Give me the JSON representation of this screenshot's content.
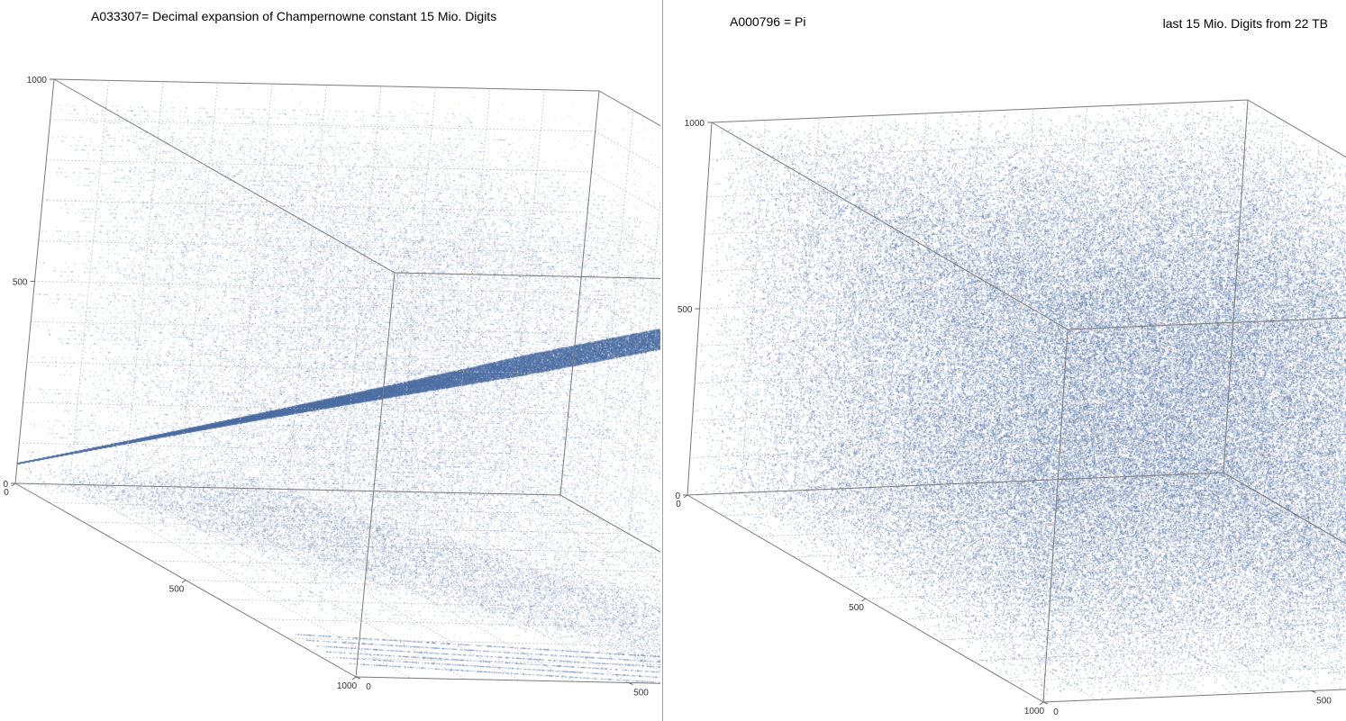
{
  "chart_data": [
    {
      "type": "scatter3d",
      "title": "A033307= Decimal expansion of Champernowne constant 15 Mio. Digits",
      "subtitle": "",
      "axes": {
        "x": {
          "range": [
            0,
            1000
          ],
          "ticks": [
            "0",
            "500",
            "1000"
          ]
        },
        "y": {
          "range": [
            0,
            1000
          ],
          "ticks": [
            "0",
            "500",
            "1000"
          ]
        },
        "z": {
          "range": [
            0,
            1000
          ],
          "ticks": [
            "0",
            "500",
            "1000"
          ]
        }
      },
      "grid": true,
      "point_color": "#4e6fa3",
      "pattern": "structured: dense diagonal band from origin to far corner plus horizontal layered lattice sheets"
    },
    {
      "type": "scatter3d",
      "title": "A000796 = Pi",
      "subtitle": "last 15 Mio. Digits from 22 TB",
      "axes": {
        "x": {
          "range": [
            0,
            1000
          ],
          "ticks": [
            "0",
            "500",
            "1000"
          ]
        },
        "y": {
          "range": [
            0,
            1000
          ],
          "ticks": [
            "0",
            "500",
            "1000"
          ]
        },
        "z": {
          "range": [
            0,
            1000
          ],
          "ticks": [
            "0",
            "500",
            "1000"
          ]
        }
      },
      "grid": true,
      "point_color": "#4e6fa3",
      "pattern": "uniform random fill of cube"
    }
  ]
}
